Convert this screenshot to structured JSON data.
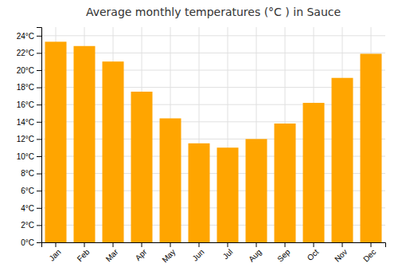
{
  "chart_data": {
    "type": "bar",
    "title": "Average monthly temperatures (°C ) in Sauce",
    "categories": [
      "Jan",
      "Feb",
      "Mar",
      "Apr",
      "May",
      "Jun",
      "Jul",
      "Aug",
      "Sep",
      "Oct",
      "Nov",
      "Dec"
    ],
    "values": [
      23.3,
      22.8,
      21.0,
      17.5,
      14.4,
      11.5,
      11.0,
      12.0,
      13.8,
      16.2,
      19.1,
      21.9
    ],
    "color": "#FFA500",
    "ylim": [
      0,
      25
    ],
    "yticks": [
      {
        "value": 0,
        "label": "0°C"
      },
      {
        "value": 2,
        "label": "2°C"
      },
      {
        "value": 4,
        "label": "4°C"
      },
      {
        "value": 6,
        "label": "6°C"
      },
      {
        "value": 8,
        "label": "8°C"
      },
      {
        "value": 10,
        "label": "10°C"
      },
      {
        "value": 12,
        "label": "12°C"
      },
      {
        "value": 14,
        "label": "14°C"
      },
      {
        "value": 16,
        "label": "16°C"
      },
      {
        "value": 18,
        "label": "18°C"
      },
      {
        "value": 20,
        "label": "20°C"
      },
      {
        "value": 22,
        "label": "22°C"
      },
      {
        "value": 24,
        "label": "24°C"
      }
    ],
    "grid": true
  }
}
